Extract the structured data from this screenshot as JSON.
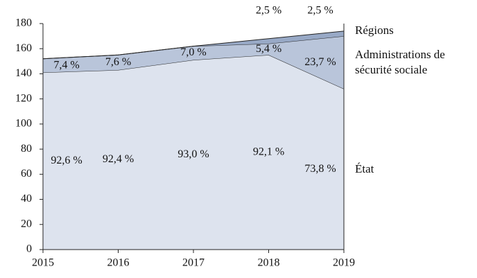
{
  "chart_data": {
    "type": "stacked-area",
    "categories": [
      "2015",
      "2016",
      "2017",
      "2018",
      "2019"
    ],
    "series": [
      {
        "name": "État",
        "color": "#dde3ee",
        "values": [
          141,
          143,
          151,
          155,
          128
        ],
        "labels": [
          "92,6 %",
          "92,4 %",
          "93,0 %",
          "92,1 %",
          "73,8 %"
        ]
      },
      {
        "name": "Administrations de sécurité sociale",
        "color": "#b9c5da",
        "values": [
          11,
          12,
          11,
          9,
          42
        ],
        "labels": [
          "7,4 %",
          "7,6 %",
          "7,0 %",
          "5,4 %",
          "23,7 %"
        ]
      },
      {
        "name": "Régions",
        "color": "#98a9c6",
        "values": [
          0,
          0,
          0,
          4,
          4
        ],
        "labels": [
          null,
          null,
          null,
          "2,5 %",
          "2,5 %"
        ]
      }
    ],
    "ylim": [
      0,
      180
    ],
    "yticks": [
      0,
      20,
      40,
      60,
      80,
      100,
      120,
      140,
      160,
      180
    ]
  }
}
